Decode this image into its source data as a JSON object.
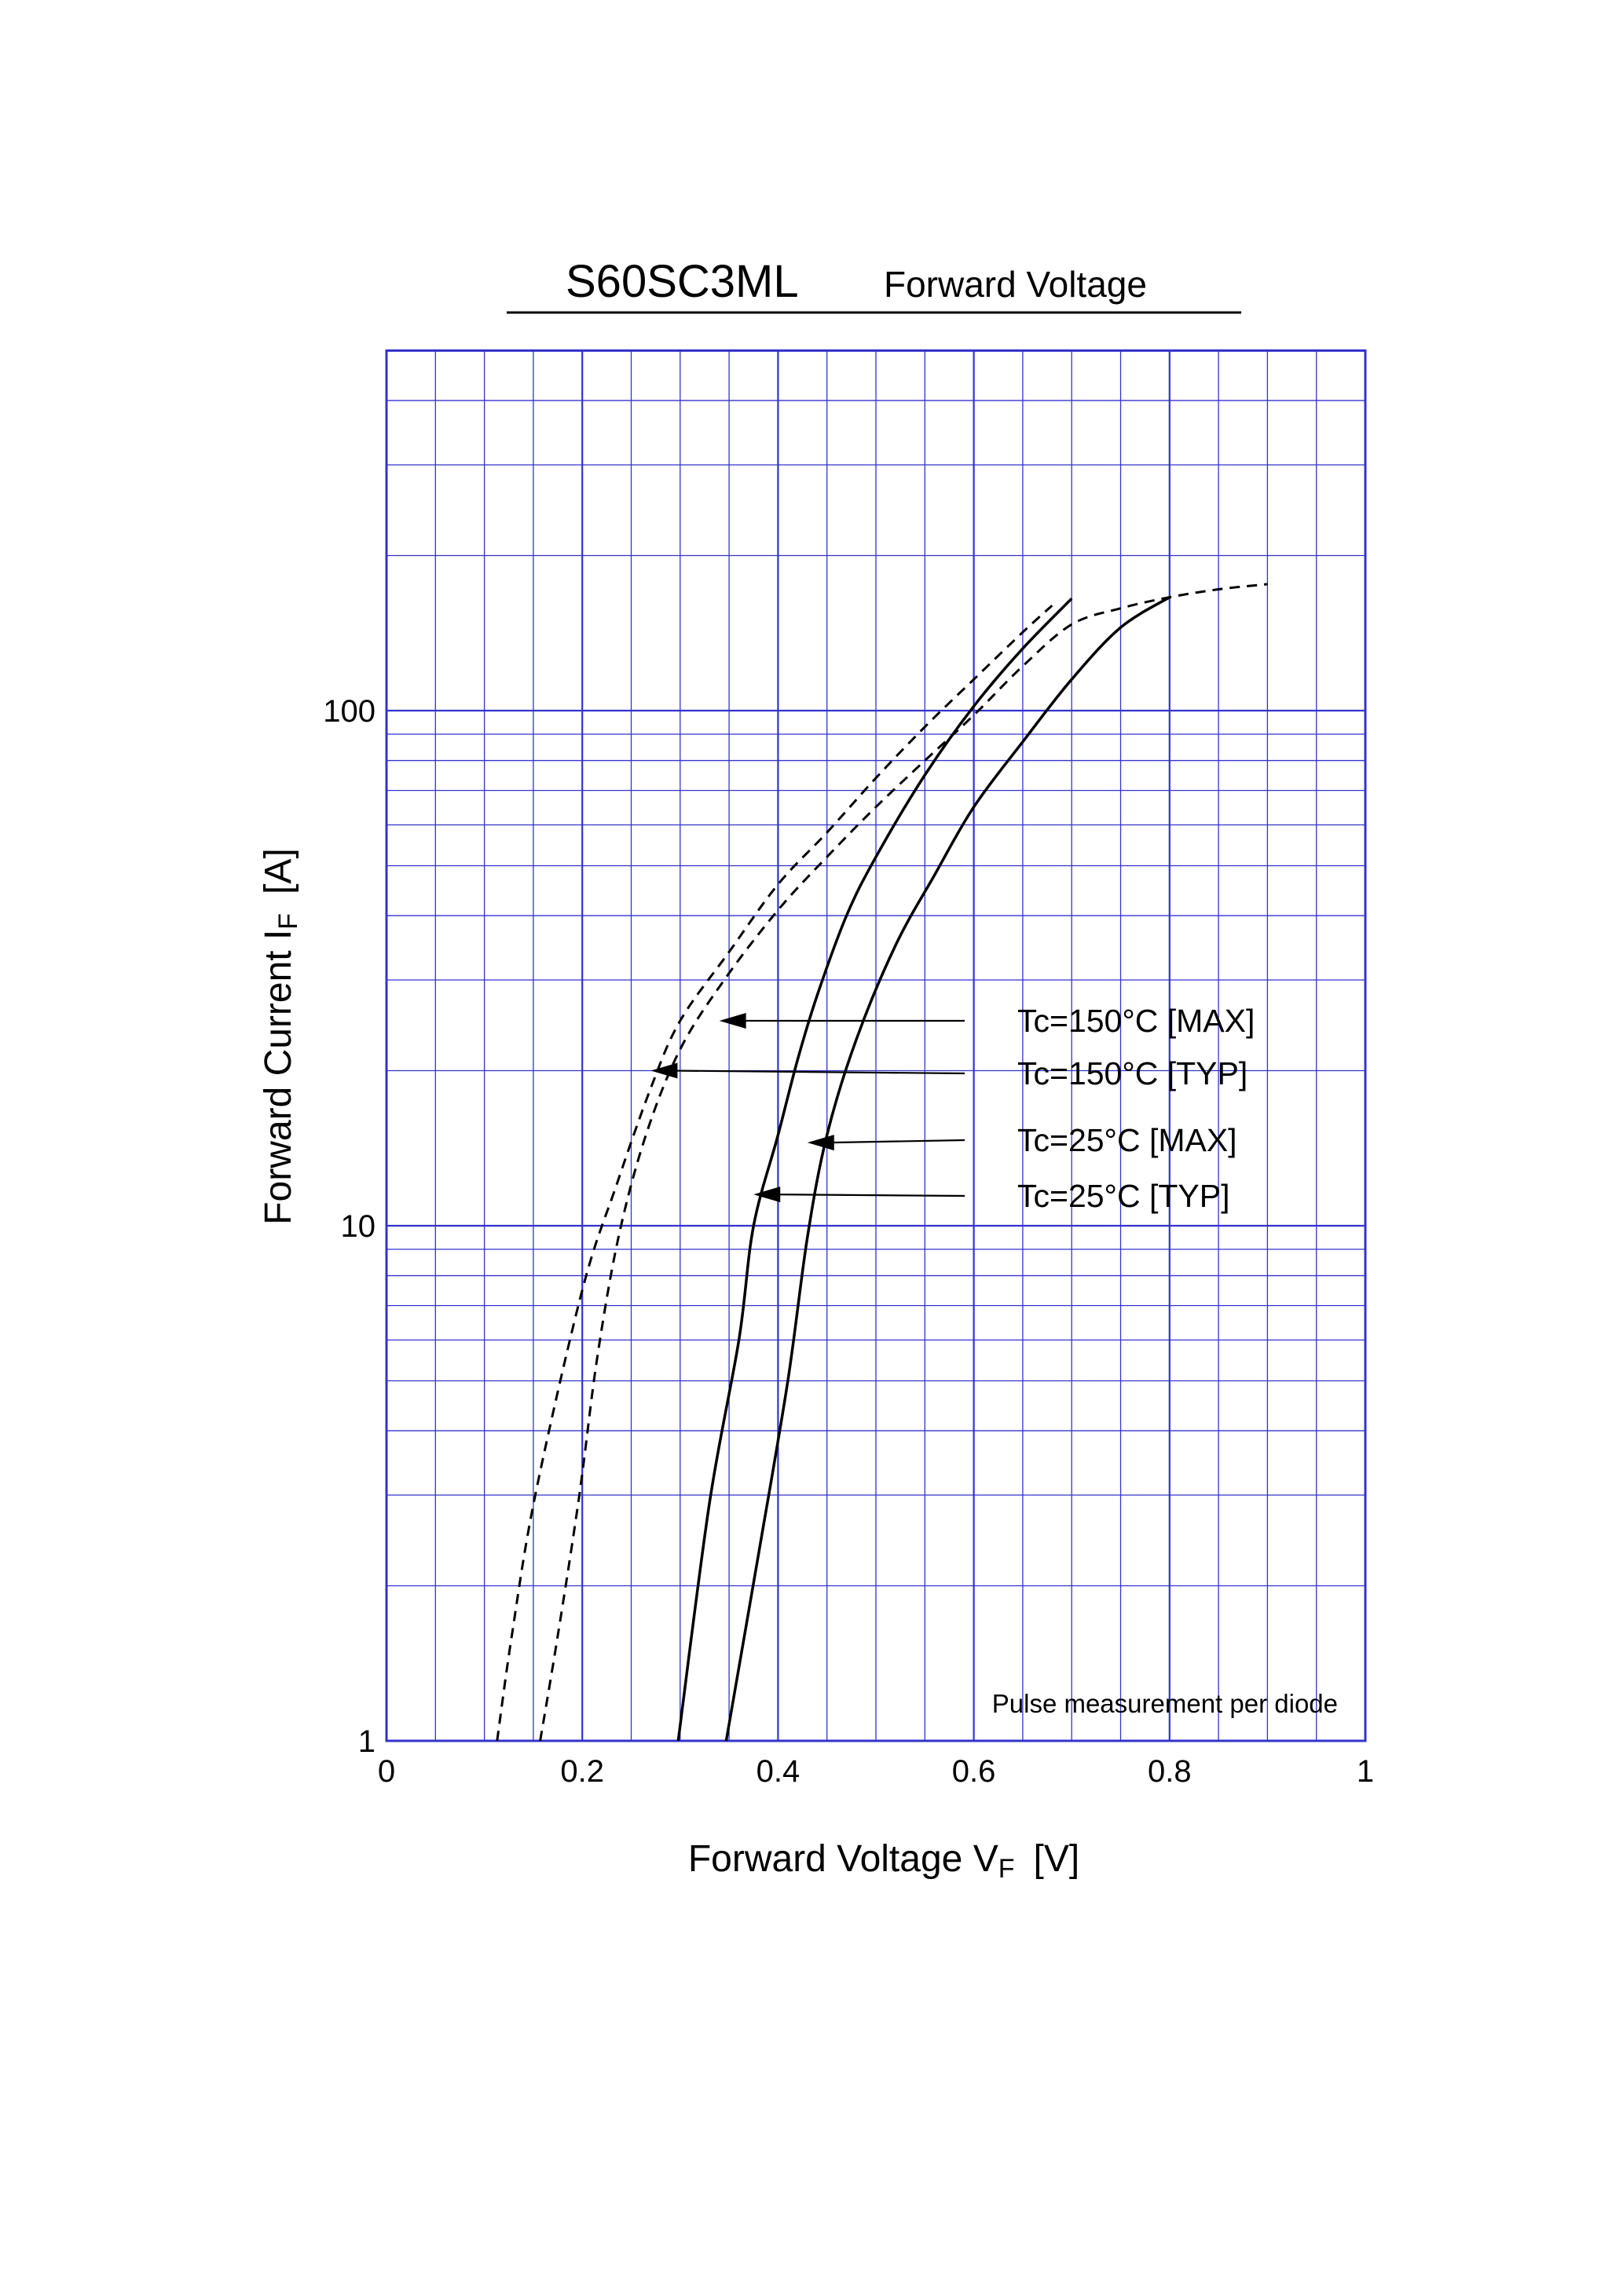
{
  "chart_data": {
    "type": "line",
    "title": "S60SC3ML",
    "subtitle": "Forward Voltage",
    "xlabel": {
      "main": "Forward Voltage  V",
      "sub": "F",
      "unit": "[V]"
    },
    "ylabel": {
      "main": "Forward Current  I",
      "sub": "F",
      "unit": "[A]"
    },
    "xlim": [
      0,
      1
    ],
    "ylim": [
      1,
      500
    ],
    "y_scale": "log",
    "grid": true,
    "x_ticks": [
      "0",
      "0.2",
      "0.4",
      "0.6",
      "0.8",
      "1"
    ],
    "x_tick_values": [
      0,
      0.2,
      0.4,
      0.6,
      0.8,
      1
    ],
    "y_ticks": [
      "1",
      "10",
      "100"
    ],
    "y_tick_values": [
      1,
      10,
      100
    ],
    "note": "Pulse measurement per diode",
    "series": [
      {
        "name": "Tc=150°C [MAX]",
        "style": "dashed",
        "arrow_at": [
          0.34,
          25
        ],
        "points": [
          [
            0.157,
            1
          ],
          [
            0.175,
            1.6
          ],
          [
            0.197,
            3
          ],
          [
            0.215,
            5.5
          ],
          [
            0.237,
            9.5
          ],
          [
            0.265,
            15
          ],
          [
            0.3,
            22
          ],
          [
            0.345,
            30
          ],
          [
            0.4,
            41
          ],
          [
            0.45,
            52
          ],
          [
            0.5,
            65
          ],
          [
            0.55,
            80
          ],
          [
            0.6,
            98
          ],
          [
            0.65,
            122
          ],
          [
            0.7,
            147
          ],
          [
            0.75,
            158
          ],
          [
            0.8,
            166
          ],
          [
            0.85,
            172
          ],
          [
            0.9,
            176
          ]
        ]
      },
      {
        "name": "Tc=150°C [TYP]",
        "style": "dashed",
        "arrow_at": [
          0.27,
          20
        ],
        "points": [
          [
            0.113,
            1
          ],
          [
            0.128,
            1.6
          ],
          [
            0.152,
            3
          ],
          [
            0.2,
            7.5
          ],
          [
            0.235,
            12
          ],
          [
            0.27,
            18.5
          ],
          [
            0.3,
            25
          ],
          [
            0.35,
            34
          ],
          [
            0.4,
            46
          ],
          [
            0.45,
            58
          ],
          [
            0.5,
            74
          ],
          [
            0.55,
            93
          ],
          [
            0.6,
            115
          ],
          [
            0.65,
            142
          ],
          [
            0.68,
            160
          ]
        ]
      },
      {
        "name": "Tc=25°C [MAX]",
        "style": "solid",
        "arrow_at": [
          0.43,
          14.5
        ],
        "points": [
          [
            0.347,
            1
          ],
          [
            0.38,
            2.3
          ],
          [
            0.41,
            5
          ],
          [
            0.43,
            9.5
          ],
          [
            0.45,
            15
          ],
          [
            0.48,
            23
          ],
          [
            0.52,
            35
          ],
          [
            0.56,
            48
          ],
          [
            0.6,
            65
          ],
          [
            0.65,
            87
          ],
          [
            0.7,
            115
          ],
          [
            0.75,
            145
          ],
          [
            0.8,
            166
          ]
        ]
      },
      {
        "name": "Tc=25°C [TYP]",
        "style": "solid",
        "arrow_at": [
          0.375,
          11.5
        ],
        "points": [
          [
            0.298,
            1
          ],
          [
            0.33,
            2.9
          ],
          [
            0.36,
            6
          ],
          [
            0.375,
            10
          ],
          [
            0.4,
            15
          ],
          [
            0.42,
            21
          ],
          [
            0.44,
            28
          ],
          [
            0.47,
            40
          ],
          [
            0.5,
            52
          ],
          [
            0.55,
            75
          ],
          [
            0.6,
            102
          ],
          [
            0.65,
            132
          ],
          [
            0.7,
            165
          ]
        ]
      }
    ],
    "colors": {
      "grid": "#3333cc",
      "curve": "#000000",
      "frame": "#000080"
    }
  }
}
